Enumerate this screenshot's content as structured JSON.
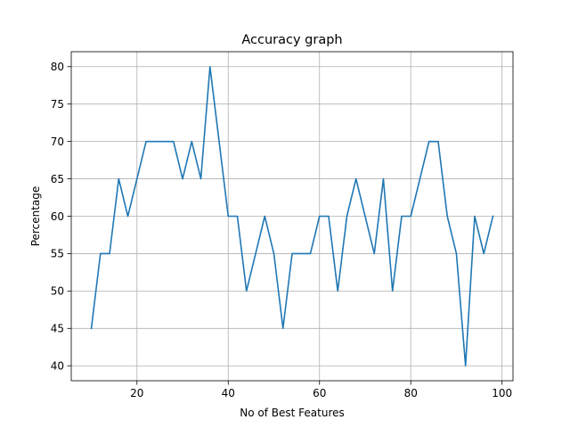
{
  "chart_data": {
    "type": "line",
    "title": "Accuracy graph",
    "xlabel": "No of Best Features",
    "ylabel": "Percentage",
    "xlim": [
      5.6,
      102.4
    ],
    "ylim": [
      38.0,
      82.0
    ],
    "xticks": [
      20,
      40,
      60,
      80,
      100
    ],
    "yticks": [
      40,
      45,
      50,
      55,
      60,
      65,
      70,
      75,
      80
    ],
    "grid": true,
    "line_color": "#1f77b4",
    "series": [
      {
        "x": [
          10,
          12,
          14,
          16,
          18,
          20,
          22,
          24,
          26,
          28,
          30,
          32,
          34,
          36,
          38,
          40,
          42,
          44,
          46,
          48,
          50,
          52,
          54,
          56,
          58,
          60,
          62,
          64,
          66,
          68,
          70,
          72,
          74,
          76,
          78,
          80,
          82,
          84,
          86,
          88,
          90,
          92,
          94,
          96,
          98
        ],
        "y": [
          45,
          55,
          55,
          65,
          60,
          65,
          70,
          70,
          70,
          70,
          65,
          70,
          65,
          80,
          70,
          60,
          60,
          50,
          55,
          60,
          55,
          45,
          55,
          55,
          55,
          60,
          60,
          50,
          60,
          65,
          60,
          55,
          65,
          50,
          60,
          60,
          65,
          70,
          70,
          60,
          55,
          40,
          60,
          55,
          60
        ]
      }
    ]
  }
}
